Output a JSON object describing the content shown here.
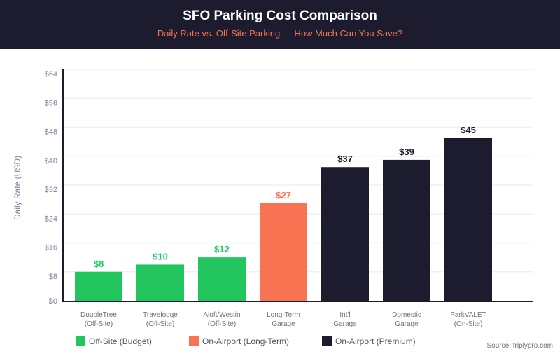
{
  "header": {
    "title": "SFO Parking Cost Comparison",
    "subtitle": "Daily Rate vs. Off-Site Parking — How Much Can You Save?"
  },
  "colors": {
    "header_bg": "#1c1c2e",
    "budget": "#22c55e",
    "long_term": "#f87352",
    "premium": "#1c1c2e",
    "subtitle": "#f87352"
  },
  "chart_data": {
    "type": "bar",
    "title": "SFO Parking Cost Comparison",
    "subtitle": "Daily Rate vs. Off-Site Parking — How Much Can You Save?",
    "ylabel": "Daily Rate (USD)",
    "xlabel": "",
    "ylim": [
      0,
      64
    ],
    "yticks": [
      "$0",
      "$8",
      "$16",
      "$24",
      "$32",
      "$40",
      "$48",
      "$56",
      "$64"
    ],
    "grid": true,
    "legend_position": "bottom-left",
    "categories": [
      [
        "DoubleTree",
        "(Off-Site)"
      ],
      [
        "Travelodge",
        "(Off-Site)"
      ],
      [
        "Aloft/Westin",
        "(Off-Site)"
      ],
      [
        "Long-Term",
        "Garage"
      ],
      [
        "Int'l",
        "Garage"
      ],
      [
        "Domestic",
        "Garage"
      ],
      [
        "ParkVALET",
        "(On-Site)"
      ]
    ],
    "values": [
      8,
      10,
      12,
      27,
      37,
      39,
      45
    ],
    "data_labels": [
      "$8",
      "$10",
      "$12",
      "$27",
      "$37",
      "$39",
      "$45"
    ],
    "groups": [
      "budget",
      "budget",
      "budget",
      "long_term",
      "premium",
      "premium",
      "premium"
    ],
    "legend": [
      {
        "key": "budget",
        "label": "Off-Site (Budget)"
      },
      {
        "key": "long_term",
        "label": "On-Airport (Long-Term)"
      },
      {
        "key": "premium",
        "label": "On-Airport (Premium)"
      }
    ]
  },
  "source": "Source: triplypro.com"
}
